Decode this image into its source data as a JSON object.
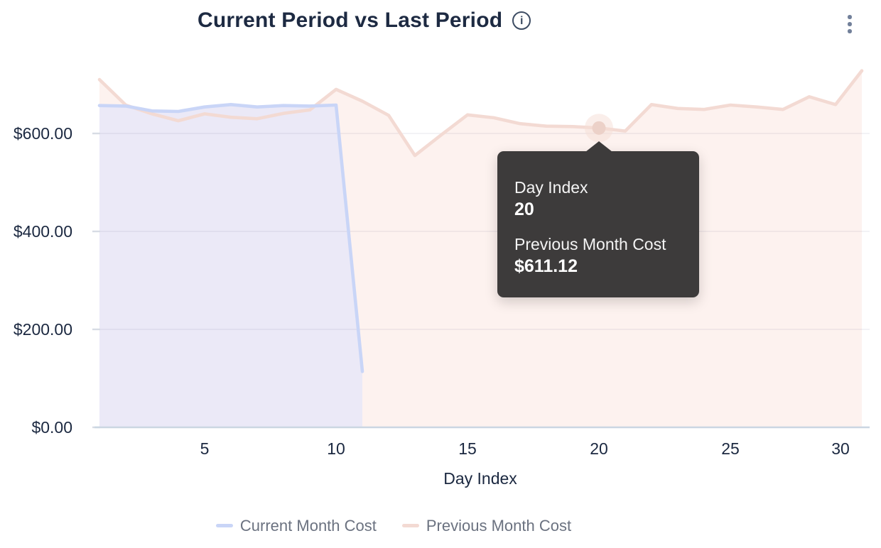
{
  "header": {
    "title": "Current Period vs Last Period",
    "info_icon": "i",
    "menu_icon": "kebab-vertical"
  },
  "tooltip": {
    "rows": [
      {
        "label": "Day Index",
        "value": "20"
      },
      {
        "label": "Previous Month Cost",
        "value": "$611.12"
      }
    ]
  },
  "chart_data": {
    "type": "area",
    "title": "Current Period vs Last Period",
    "xlabel": "Day Index",
    "ylabel": "",
    "ylim": [
      0,
      870
    ],
    "grid": "horizontal",
    "legend_position": "bottom",
    "x_ticks": [
      {
        "v": 5,
        "label": "5"
      },
      {
        "v": 10,
        "label": "10"
      },
      {
        "v": 15,
        "label": "15"
      },
      {
        "v": 20,
        "label": "20"
      },
      {
        "v": 25,
        "label": "25"
      },
      {
        "v": 30,
        "label": "30"
      }
    ],
    "y_ticks": [
      {
        "v": 600,
        "label": "$600.00"
      },
      {
        "v": 400,
        "label": "$400.00"
      },
      {
        "v": 200,
        "label": "$200.00"
      },
      {
        "v": 0,
        "label": "$0.00"
      }
    ],
    "series": [
      {
        "name": "Current Month Cost",
        "line_color": "#c9d5f7",
        "fill_color": "#ebe9f7",
        "x": [
          1,
          2,
          3,
          4,
          5,
          6,
          7,
          8,
          9,
          10,
          11
        ],
        "values": [
          657,
          656,
          646,
          645,
          654,
          659,
          654,
          657,
          656,
          658,
          114
        ]
      },
      {
        "name": "Previous Month Cost",
        "line_color": "#f3dad3",
        "fill_color": "#fdf2ef",
        "x": [
          1,
          2,
          3,
          4,
          5,
          6,
          7,
          8,
          9,
          10,
          11,
          12,
          13,
          14,
          15,
          16,
          17,
          18,
          19,
          20,
          21,
          22,
          23,
          24,
          25,
          26,
          27,
          28,
          29,
          30
        ],
        "values": [
          710,
          658,
          640,
          626,
          640,
          633,
          630,
          641,
          648,
          690,
          666,
          637,
          555,
          597,
          638,
          632,
          620,
          615,
          614,
          611.12,
          605,
          659,
          651,
          649,
          658,
          654,
          649,
          675,
          659,
          728
        ]
      }
    ],
    "highlight": {
      "series": "Previous Month Cost",
      "x": 20,
      "value": 611.12,
      "dot_color": "#ecd1c8",
      "halo_color": "#f6ddd5"
    },
    "colors": {
      "grid_line": "rgba(120,125,145,0.12)",
      "axis_line": "#cbd6e2",
      "tick_mark": "#d7dce4",
      "tick_text": "#1b2840",
      "legend_text": "#6b7280",
      "tooltip_bg": "#3d3b3b",
      "title_text": "#1d2a42"
    }
  }
}
